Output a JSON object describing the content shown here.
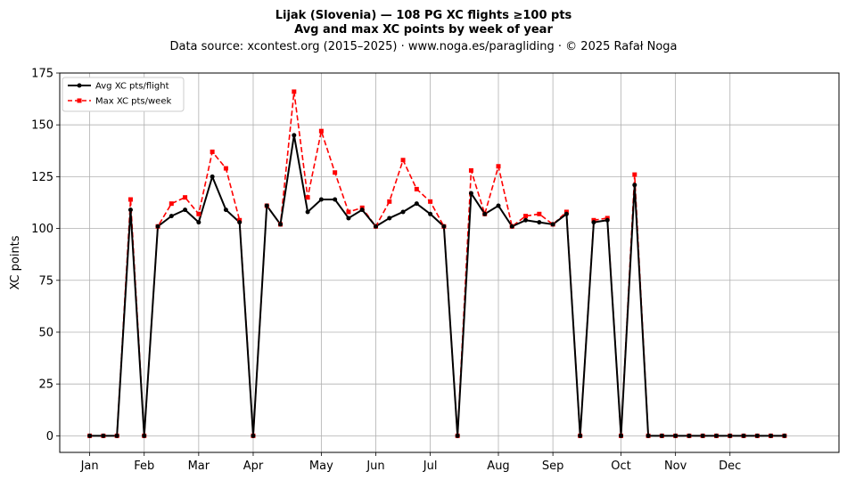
{
  "chart_data": {
    "type": "line",
    "title": "Lijak (Slovenia)  —  108 PG XC flights ≥100 pts",
    "title_line2": "Avg and max XC points by week of year",
    "subtitle": "Data source: xcontest.org (2015–2025)  ·  www.noga.es/paragliding  ·  © 2025 Rafał Noga",
    "xlabel": "",
    "ylabel": "XC points",
    "ylim": [
      -8,
      175
    ],
    "xlim": [
      -2.2,
      55
    ],
    "yticks": [
      0,
      25,
      50,
      75,
      100,
      125,
      150,
      175
    ],
    "xticks": [
      {
        "label": "Jan",
        "week": 0
      },
      {
        "label": "Feb",
        "week": 4
      },
      {
        "label": "Mar",
        "week": 8
      },
      {
        "label": "Apr",
        "week": 12
      },
      {
        "label": "May",
        "week": 17
      },
      {
        "label": "Jun",
        "week": 21
      },
      {
        "label": "Jul",
        "week": 25
      },
      {
        "label": "Aug",
        "week": 30
      },
      {
        "label": "Sep",
        "week": 34
      },
      {
        "label": "Oct",
        "week": 39
      },
      {
        "label": "Nov",
        "week": 43
      },
      {
        "label": "Dec",
        "week": 47
      }
    ],
    "grid": true,
    "legend_position": "top-left",
    "x": [
      0,
      1,
      2,
      3,
      4,
      5,
      6,
      7,
      8,
      9,
      10,
      11,
      12,
      13,
      14,
      15,
      16,
      17,
      18,
      19,
      20,
      21,
      22,
      23,
      24,
      25,
      26,
      27,
      28,
      29,
      30,
      31,
      32,
      33,
      34,
      35,
      36,
      37,
      38,
      39,
      40,
      41,
      42,
      43,
      44,
      45,
      46,
      47,
      48,
      49,
      50,
      51
    ],
    "series": [
      {
        "name": "Avg XC pts/flight",
        "color": "#000000",
        "style": "solid",
        "marker": "circle",
        "values": [
          0,
          0,
          0,
          109,
          0,
          101,
          106,
          109,
          103,
          125,
          109,
          103,
          0,
          111,
          102,
          145,
          108,
          114,
          114,
          105,
          109,
          101,
          105,
          108,
          112,
          107,
          101,
          0,
          117,
          107,
          111,
          101,
          104,
          103,
          102,
          107,
          0,
          103,
          104,
          0,
          121,
          0,
          0,
          0,
          0,
          0,
          0,
          0,
          0,
          0,
          0,
          0
        ]
      },
      {
        "name": "Max XC pts/week",
        "color": "#ff0000",
        "style": "dashed",
        "marker": "square",
        "values": [
          0,
          0,
          0,
          114,
          0,
          101,
          112,
          115,
          107,
          137,
          129,
          104,
          0,
          111,
          102,
          166,
          115,
          147,
          127,
          108,
          110,
          101,
          113,
          133,
          119,
          113,
          101,
          0,
          128,
          107,
          130,
          101,
          106,
          107,
          102,
          108,
          0,
          104,
          105,
          0,
          126,
          0,
          0,
          0,
          0,
          0,
          0,
          0,
          0,
          0,
          0,
          0
        ]
      }
    ]
  }
}
